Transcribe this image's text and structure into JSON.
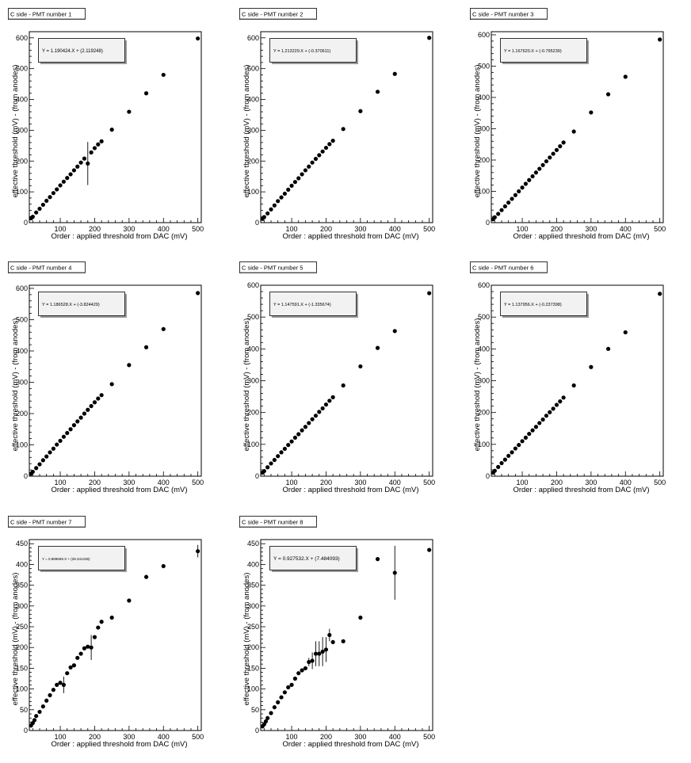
{
  "chart_data": [
    {
      "type": "scatter",
      "title": "C side - PMT number 1",
      "xlabel": "Order : applied threshold from DAC (mV)",
      "ylabel": "effective threshold (mV) - (from anodes)",
      "xlim": [
        10,
        510
      ],
      "ylim": [
        0,
        620
      ],
      "xticks": [
        100,
        200,
        300,
        400,
        500
      ],
      "yticks": [
        0,
        100,
        200,
        300,
        400,
        500,
        600
      ],
      "fit_text": "Y = 1.190424.X + (2.119248)",
      "fit_font": 6,
      "x": [
        15,
        20,
        30,
        40,
        50,
        60,
        70,
        80,
        90,
        100,
        110,
        120,
        130,
        140,
        150,
        160,
        170,
        180,
        190,
        200,
        210,
        220,
        250,
        300,
        350,
        400,
        500
      ],
      "y": [
        14,
        19,
        33,
        45,
        58,
        71,
        83,
        96,
        108,
        121,
        133,
        145,
        157,
        170,
        182,
        195,
        208,
        192,
        228,
        242,
        254,
        264,
        302,
        360,
        420,
        480,
        598
      ],
      "err": [
        0,
        0,
        0,
        0,
        0,
        0,
        0,
        0,
        0,
        0,
        0,
        0,
        0,
        0,
        0,
        0,
        0,
        70,
        0,
        0,
        0,
        0,
        0,
        0,
        0,
        0,
        0
      ]
    },
    {
      "type": "scatter",
      "title": "C side - PMT number 2",
      "xlabel": "Order : applied threshold from DAC (mV)",
      "ylabel": "effective threshold (mV) - (from anodes)",
      "xlim": [
        10,
        510
      ],
      "ylim": [
        0,
        620
      ],
      "xticks": [
        100,
        200,
        300,
        400,
        500
      ],
      "yticks": [
        0,
        100,
        200,
        300,
        400,
        500,
        600
      ],
      "fit_text": "Y = 1.213229.X + (-0.370611)",
      "fit_font": 5.5,
      "x": [
        15,
        20,
        30,
        40,
        50,
        60,
        70,
        80,
        90,
        100,
        110,
        120,
        130,
        140,
        150,
        160,
        170,
        180,
        190,
        200,
        210,
        220,
        250,
        300,
        350,
        400,
        500
      ],
      "y": [
        12,
        18,
        30,
        43,
        56,
        70,
        82,
        94,
        107,
        120,
        132,
        144,
        157,
        170,
        182,
        195,
        207,
        219,
        231,
        243,
        255,
        266,
        304,
        362,
        425,
        483,
        600
      ],
      "err": [
        0,
        0,
        0,
        0,
        0,
        0,
        0,
        0,
        0,
        0,
        0,
        0,
        0,
        0,
        0,
        0,
        0,
        0,
        0,
        0,
        0,
        0,
        0,
        0,
        0,
        0,
        0
      ]
    },
    {
      "type": "scatter",
      "title": "C side - PMT number 3",
      "xlabel": "Order : applied threshold from DAC (mV)",
      "ylabel": "effective threshold (mV) - (from anodes)",
      "xlim": [
        10,
        510
      ],
      "ylim": [
        0,
        610
      ],
      "xticks": [
        100,
        200,
        300,
        400,
        500
      ],
      "yticks": [
        0,
        100,
        200,
        300,
        400,
        500,
        600
      ],
      "fit_text": "Y = 1.167620.X + (-0.795239)",
      "fit_font": 5.5,
      "x": [
        15,
        20,
        30,
        40,
        50,
        60,
        70,
        80,
        90,
        100,
        110,
        120,
        130,
        140,
        150,
        160,
        170,
        180,
        190,
        200,
        210,
        220,
        250,
        300,
        350,
        400,
        500
      ],
      "y": [
        11,
        17,
        28,
        40,
        52,
        64,
        76,
        88,
        100,
        112,
        124,
        136,
        148,
        160,
        172,
        184,
        196,
        208,
        220,
        232,
        244,
        256,
        291,
        352,
        410,
        466,
        585
      ],
      "err": [
        0,
        0,
        0,
        0,
        0,
        0,
        0,
        0,
        0,
        0,
        0,
        0,
        0,
        0,
        0,
        0,
        0,
        0,
        0,
        0,
        0,
        0,
        0,
        0,
        0,
        0,
        0
      ]
    },
    {
      "type": "scatter",
      "title": "C side - PMT number 4",
      "xlabel": "Order : applied threshold from DAC (mV)",
      "ylabel": "effective threshold (mV) - (from anodes)",
      "xlim": [
        10,
        510
      ],
      "ylim": [
        0,
        610
      ],
      "xticks": [
        100,
        200,
        300,
        400,
        500
      ],
      "yticks": [
        0,
        100,
        200,
        300,
        400,
        500,
        600
      ],
      "fit_text": "Y = 1.186528.X + (-3.824429)",
      "fit_font": 5.5,
      "x": [
        15,
        20,
        30,
        40,
        50,
        60,
        70,
        80,
        90,
        100,
        110,
        120,
        130,
        140,
        150,
        160,
        170,
        180,
        190,
        200,
        210,
        220,
        250,
        300,
        350,
        400,
        500
      ],
      "y": [
        8,
        14,
        26,
        38,
        51,
        63,
        76,
        88,
        101,
        113,
        126,
        138,
        150,
        163,
        175,
        187,
        200,
        212,
        224,
        236,
        248,
        259,
        294,
        355,
        412,
        470,
        585
      ],
      "err": [
        0,
        0,
        0,
        0,
        0,
        0,
        0,
        0,
        0,
        0,
        0,
        0,
        0,
        0,
        0,
        0,
        0,
        0,
        0,
        0,
        0,
        0,
        0,
        0,
        0,
        0,
        0
      ]
    },
    {
      "type": "scatter",
      "title": "C side - PMT number 5",
      "xlabel": "Order : applied threshold from DAC (mV)",
      "ylabel": "effective threshold (mV) - (from anodes)",
      "xlim": [
        10,
        510
      ],
      "ylim": [
        0,
        600
      ],
      "xticks": [
        100,
        200,
        300,
        400,
        500
      ],
      "yticks": [
        0,
        100,
        200,
        300,
        400,
        500,
        600
      ],
      "fit_text": "Y = 1.147591.X + (-1.335674)",
      "fit_font": 5.5,
      "x": [
        15,
        20,
        30,
        40,
        50,
        60,
        70,
        80,
        90,
        100,
        110,
        120,
        130,
        140,
        150,
        160,
        170,
        180,
        190,
        200,
        210,
        220,
        250,
        300,
        350,
        400,
        500
      ],
      "y": [
        11,
        16,
        28,
        40,
        51,
        63,
        75,
        86,
        98,
        109,
        121,
        132,
        144,
        155,
        167,
        179,
        190,
        202,
        213,
        225,
        237,
        248,
        285,
        345,
        403,
        456,
        575
      ],
      "err": [
        0,
        0,
        0,
        0,
        0,
        0,
        0,
        0,
        0,
        0,
        0,
        0,
        0,
        0,
        0,
        0,
        0,
        0,
        0,
        0,
        0,
        0,
        0,
        0,
        0,
        0,
        0
      ]
    },
    {
      "type": "scatter",
      "title": "C side - PMT number 6",
      "xlabel": "Order : applied threshold from DAC (mV)",
      "ylabel": "effective threshold (mV) - (from anodes)",
      "xlim": [
        10,
        510
      ],
      "ylim": [
        0,
        600
      ],
      "xticks": [
        100,
        200,
        300,
        400,
        500
      ],
      "yticks": [
        0,
        100,
        200,
        300,
        400,
        500,
        600
      ],
      "fit_text": "Y = 1.137956.X + (-0.237398)",
      "fit_font": 5.5,
      "x": [
        15,
        20,
        30,
        40,
        50,
        60,
        70,
        80,
        90,
        100,
        110,
        120,
        130,
        140,
        150,
        160,
        170,
        180,
        190,
        200,
        210,
        220,
        250,
        300,
        350,
        400,
        500
      ],
      "y": [
        11,
        17,
        29,
        41,
        52,
        64,
        75,
        87,
        98,
        110,
        121,
        133,
        144,
        155,
        167,
        178,
        190,
        201,
        212,
        224,
        235,
        247,
        285,
        343,
        400,
        452,
        573
      ],
      "err": [
        0,
        0,
        0,
        0,
        0,
        0,
        0,
        0,
        0,
        0,
        0,
        0,
        0,
        0,
        0,
        0,
        0,
        0,
        0,
        0,
        0,
        0,
        0,
        0,
        0,
        0,
        0
      ]
    },
    {
      "type": "scatter",
      "title": "C side - PMT number 7",
      "xlabel": "Order : applied threshold from DAC (mV)",
      "ylabel": "effective threshold (mV) - (from anodes)",
      "xlim": [
        10,
        510
      ],
      "ylim": [
        0,
        460
      ],
      "xticks": [
        100,
        200,
        300,
        400,
        500
      ],
      "yticks": [
        0,
        50,
        100,
        150,
        200,
        250,
        300,
        350,
        400,
        450
      ],
      "fit_text": "Y = 0.889669.X + (28.341236)",
      "fit_font": 4.5,
      "x": [
        15,
        20,
        25,
        30,
        40,
        50,
        60,
        70,
        80,
        90,
        100,
        110,
        120,
        130,
        140,
        150,
        160,
        170,
        180,
        190,
        200,
        210,
        220,
        250,
        300,
        350,
        400,
        500
      ],
      "y": [
        12,
        18,
        25,
        35,
        45,
        58,
        72,
        85,
        98,
        110,
        115,
        110,
        138,
        152,
        157,
        175,
        185,
        198,
        202,
        200,
        225,
        248,
        262,
        272,
        313,
        370,
        396,
        432
      ],
      "err": [
        0,
        0,
        0,
        0,
        0,
        0,
        0,
        0,
        0,
        0,
        0,
        20,
        0,
        0,
        0,
        0,
        0,
        0,
        0,
        30,
        0,
        0,
        0,
        0,
        0,
        0,
        0,
        15
      ]
    },
    {
      "type": "scatter",
      "title": "C side - PMT number 8",
      "xlabel": "Order : applied threshold from DAC (mV)",
      "ylabel": "effective threshold (mV) - (from anodes)",
      "xlim": [
        10,
        510
      ],
      "ylim": [
        0,
        460
      ],
      "xticks": [
        100,
        200,
        300,
        400,
        500
      ],
      "yticks": [
        0,
        50,
        100,
        150,
        200,
        250,
        300,
        350,
        400,
        450
      ],
      "fit_text": "Y = 0.927532.X + (7.484093)",
      "fit_font": 6.5,
      "x": [
        15,
        20,
        25,
        30,
        40,
        50,
        60,
        70,
        80,
        90,
        100,
        110,
        120,
        130,
        140,
        150,
        160,
        170,
        180,
        190,
        200,
        210,
        220,
        250,
        300,
        350,
        400,
        500
      ],
      "y": [
        10,
        15,
        22,
        30,
        42,
        56,
        68,
        80,
        92,
        104,
        110,
        125,
        138,
        145,
        150,
        165,
        168,
        185,
        185,
        190,
        195,
        230,
        213,
        215,
        272,
        413,
        380,
        435
      ],
      "err": [
        0,
        0,
        0,
        0,
        0,
        0,
        0,
        0,
        0,
        0,
        0,
        0,
        0,
        0,
        0,
        10,
        20,
        30,
        30,
        35,
        30,
        15,
        0,
        0,
        0,
        0,
        65,
        0
      ]
    }
  ]
}
